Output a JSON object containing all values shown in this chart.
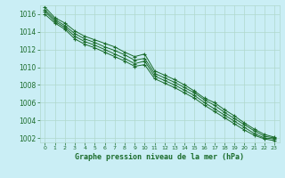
{
  "title": "Graphe pression niveau de la mer (hPa)",
  "background_color": "#caeef5",
  "grid_color": "#b0d8cc",
  "line_color": "#1a6b2a",
  "text_color": "#1a6b2a",
  "xlim": [
    -0.5,
    23.5
  ],
  "ylim": [
    1001.5,
    1017.0
  ],
  "yticks": [
    1002,
    1004,
    1006,
    1008,
    1010,
    1012,
    1014,
    1016
  ],
  "xticks": [
    0,
    1,
    2,
    3,
    4,
    5,
    6,
    7,
    8,
    9,
    10,
    11,
    12,
    13,
    14,
    15,
    16,
    17,
    18,
    19,
    20,
    21,
    22,
    23
  ],
  "series": [
    [
      1016.8,
      1015.6,
      1015.0,
      1014.1,
      1013.5,
      1013.1,
      1012.7,
      1012.3,
      1011.7,
      1011.2,
      1011.5,
      1009.6,
      1009.1,
      1008.6,
      1008.0,
      1007.3,
      1006.5,
      1006.0,
      1005.2,
      1004.5,
      1003.7,
      1003.0,
      1002.4,
      1002.1
    ],
    [
      1016.5,
      1015.4,
      1014.7,
      1013.8,
      1013.2,
      1012.8,
      1012.3,
      1011.9,
      1011.4,
      1010.8,
      1011.0,
      1009.3,
      1008.8,
      1008.3,
      1007.7,
      1007.1,
      1006.3,
      1005.7,
      1004.9,
      1004.2,
      1003.5,
      1002.8,
      1002.2,
      1002.0
    ],
    [
      1016.3,
      1015.2,
      1014.5,
      1013.5,
      1012.9,
      1012.5,
      1012.0,
      1011.5,
      1011.0,
      1010.4,
      1010.7,
      1009.0,
      1008.5,
      1008.0,
      1007.4,
      1006.8,
      1006.0,
      1005.3,
      1004.6,
      1003.9,
      1003.2,
      1002.5,
      1002.0,
      1001.9
    ],
    [
      1016.0,
      1015.0,
      1014.3,
      1013.2,
      1012.6,
      1012.2,
      1011.7,
      1011.2,
      1010.7,
      1010.1,
      1010.3,
      1008.7,
      1008.2,
      1007.7,
      1007.1,
      1006.5,
      1005.7,
      1005.0,
      1004.3,
      1003.6,
      1002.9,
      1002.3,
      1001.9,
      1001.7
    ]
  ]
}
